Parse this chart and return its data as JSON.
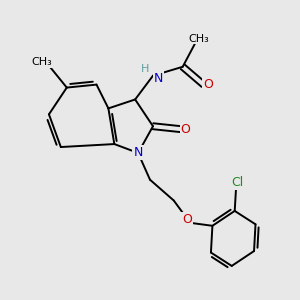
{
  "background_color": "#e8e8e8",
  "atom_colors": {
    "C": "#000000",
    "N": "#0000cc",
    "O": "#cc0000",
    "H": "#5f9ea0",
    "Cl": "#228b22",
    "CH3": "#000000"
  },
  "bond_color": "#000000",
  "figsize": [
    3.0,
    3.0
  ],
  "dpi": 100
}
